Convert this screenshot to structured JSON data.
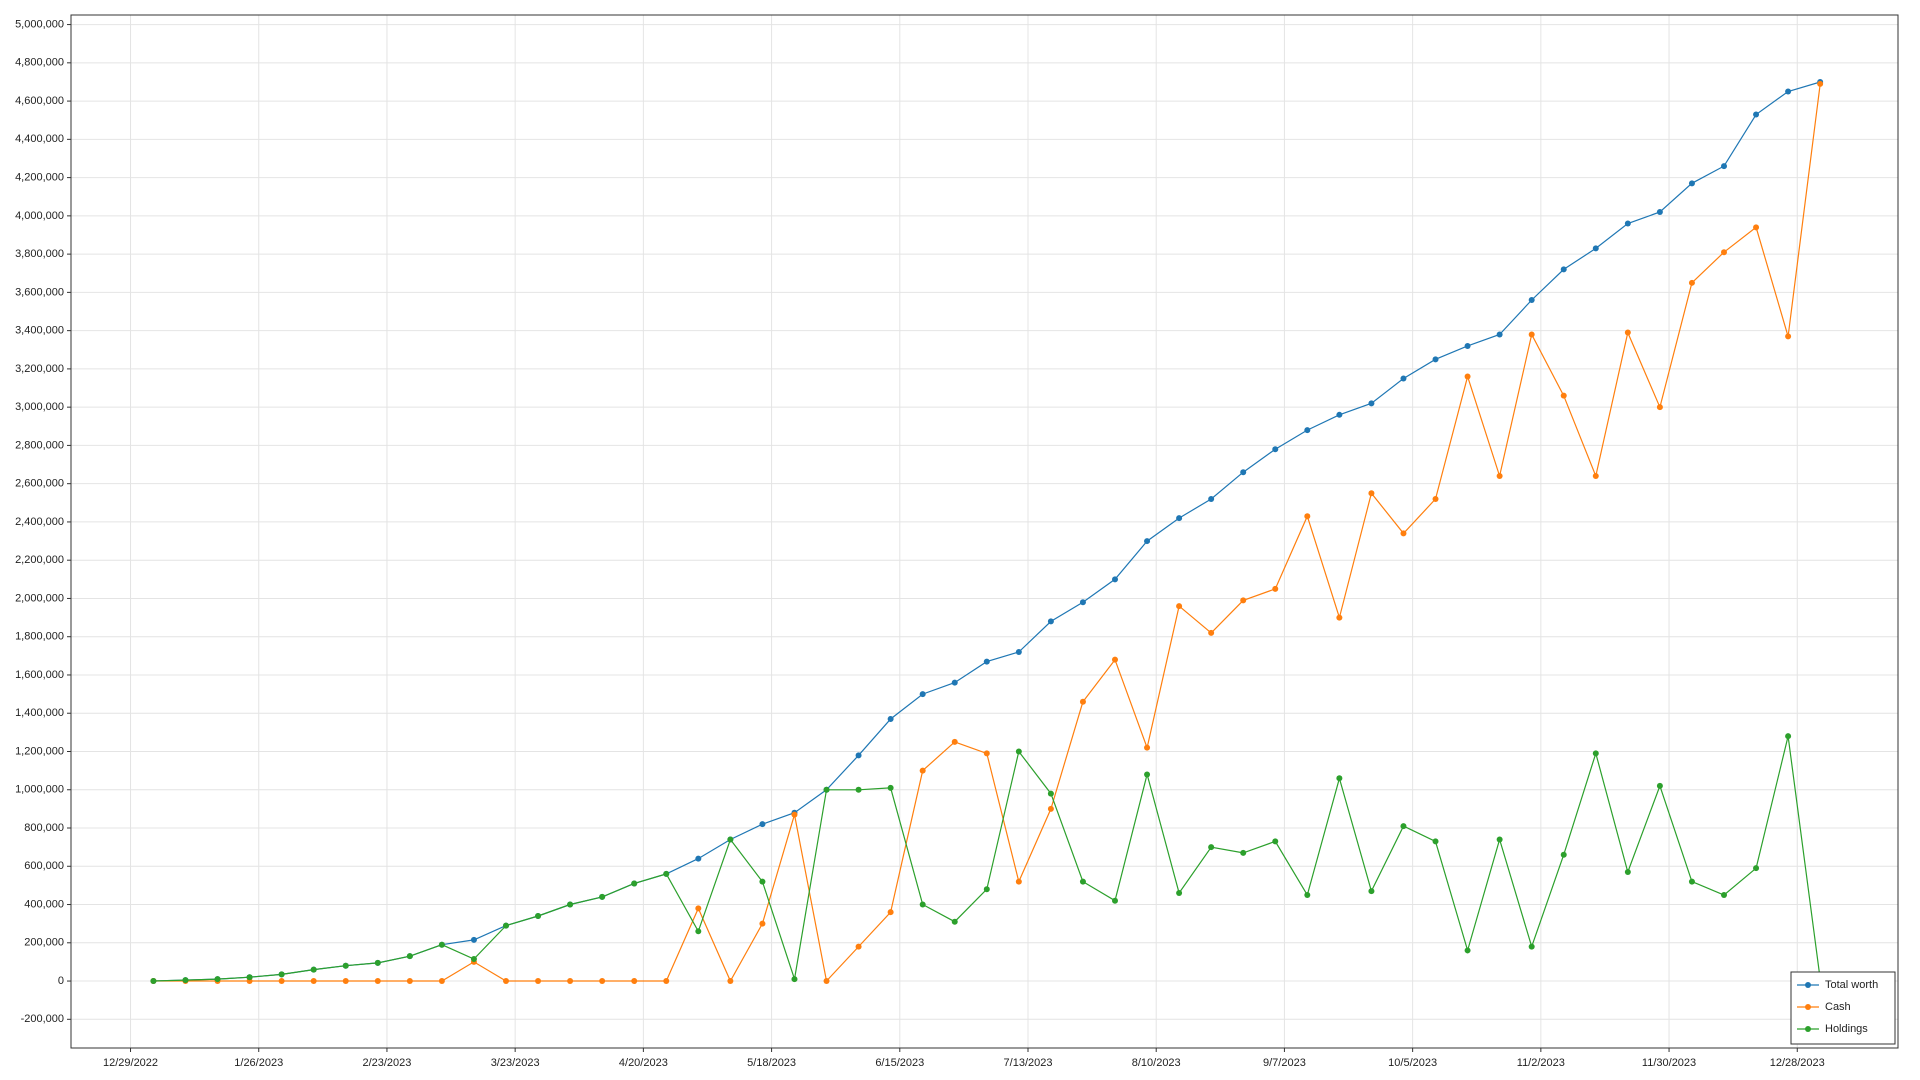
{
  "chart_data": {
    "type": "line",
    "x": [
      "2023-01-03",
      "2023-01-10",
      "2023-01-17",
      "2023-01-24",
      "2023-01-31",
      "2023-02-07",
      "2023-02-14",
      "2023-02-21",
      "2023-02-28",
      "2023-03-07",
      "2023-03-14",
      "2023-03-21",
      "2023-03-28",
      "2023-04-04",
      "2023-04-11",
      "2023-04-18",
      "2023-04-25",
      "2023-05-02",
      "2023-05-09",
      "2023-05-16",
      "2023-05-23",
      "2023-05-30",
      "2023-06-06",
      "2023-06-13",
      "2023-06-20",
      "2023-06-27",
      "2023-07-04",
      "2023-07-11",
      "2023-07-18",
      "2023-07-25",
      "2023-08-01",
      "2023-08-08",
      "2023-08-15",
      "2023-08-22",
      "2023-08-29",
      "2023-09-05",
      "2023-09-12",
      "2023-09-19",
      "2023-09-26",
      "2023-10-03",
      "2023-10-10",
      "2023-10-17",
      "2023-10-24",
      "2023-10-31",
      "2023-11-07",
      "2023-11-14",
      "2023-11-21",
      "2023-11-28",
      "2023-12-05",
      "2023-12-12",
      "2023-12-19",
      "2023-12-26",
      "2024-01-02"
    ],
    "series": [
      {
        "name": "Total worth",
        "color": "#1f77b4",
        "values": [
          0,
          5000,
          10000,
          20000,
          35000,
          60000,
          80000,
          95000,
          130000,
          190000,
          215000,
          290000,
          340000,
          400000,
          440000,
          510000,
          560000,
          640000,
          740000,
          820000,
          880000,
          1000000,
          1180000,
          1370000,
          1500000,
          1560000,
          1670000,
          1720000,
          1880000,
          1980000,
          2100000,
          2300000,
          2420000,
          2520000,
          2660000,
          2780000,
          2880000,
          2960000,
          3020000,
          3150000,
          3250000,
          3320000,
          3380000,
          3560000,
          3720000,
          3830000,
          3960000,
          4020000,
          4170000,
          4260000,
          4530000,
          4650000,
          4700000
        ]
      },
      {
        "name": "Cash",
        "color": "#ff7f0e",
        "values": [
          0,
          0,
          0,
          0,
          0,
          0,
          0,
          0,
          0,
          0,
          100000,
          0,
          0,
          0,
          0,
          0,
          0,
          380000,
          0,
          300000,
          870000,
          0,
          180000,
          360000,
          1100000,
          1250000,
          1190000,
          520000,
          900000,
          1460000,
          1680000,
          1220000,
          1960000,
          1820000,
          1990000,
          2050000,
          2430000,
          1900000,
          2550000,
          2340000,
          2520000,
          3160000,
          2640000,
          3380000,
          3060000,
          2640000,
          3390000,
          3000000,
          3650000,
          3810000,
          3940000,
          3370000,
          4690000
        ]
      },
      {
        "name": "Holdings",
        "color": "#2ca02c",
        "values": [
          0,
          5000,
          10000,
          20000,
          35000,
          60000,
          80000,
          95000,
          130000,
          190000,
          115000,
          290000,
          340000,
          400000,
          440000,
          510000,
          560000,
          260000,
          740000,
          520000,
          10000,
          1000000,
          1000000,
          1010000,
          400000,
          310000,
          480000,
          1200000,
          980000,
          520000,
          420000,
          1080000,
          460000,
          700000,
          670000,
          730000,
          450000,
          1060000,
          470000,
          810000,
          730000,
          160000,
          740000,
          180000,
          660000,
          1190000,
          570000,
          1020000,
          520000,
          450000,
          590000,
          1280000,
          10000
        ]
      }
    ],
    "xlim": [
      "2022-12-16",
      "2024-01-19"
    ],
    "xticks": [
      {
        "value": "2022-12-29",
        "label": "12/29/2022"
      },
      {
        "value": "2023-01-26",
        "label": "1/26/2023"
      },
      {
        "value": "2023-02-23",
        "label": "2/23/2023"
      },
      {
        "value": "2023-03-23",
        "label": "3/23/2023"
      },
      {
        "value": "2023-04-20",
        "label": "4/20/2023"
      },
      {
        "value": "2023-05-18",
        "label": "5/18/2023"
      },
      {
        "value": "2023-06-15",
        "label": "6/15/2023"
      },
      {
        "value": "2023-07-13",
        "label": "7/13/2023"
      },
      {
        "value": "2023-08-10",
        "label": "8/10/2023"
      },
      {
        "value": "2023-09-07",
        "label": "9/7/2023"
      },
      {
        "value": "2023-10-05",
        "label": "10/5/2023"
      },
      {
        "value": "2023-11-02",
        "label": "11/2/2023"
      },
      {
        "value": "2023-11-30",
        "label": "11/30/2023"
      },
      {
        "value": "2023-12-28",
        "label": "12/28/2023"
      }
    ],
    "ylim": [
      -350000,
      5050000
    ],
    "yticks": [
      {
        "value": -200000,
        "label": "-200,000"
      },
      0,
      {
        "value": 200000,
        "label": "200,000"
      },
      {
        "value": 400000,
        "label": "400,000"
      },
      {
        "value": 600000,
        "label": "600,000"
      },
      {
        "value": 800000,
        "label": "800,000"
      },
      {
        "value": 1000000,
        "label": "1,000,000"
      },
      {
        "value": 1200000,
        "label": "1,200,000"
      },
      {
        "value": 1400000,
        "label": "1,400,000"
      },
      {
        "value": 1600000,
        "label": "1,600,000"
      },
      {
        "value": 1800000,
        "label": "1,800,000"
      },
      {
        "value": 2000000,
        "label": "2,000,000"
      },
      {
        "value": 2200000,
        "label": "2,200,000"
      },
      {
        "value": 2400000,
        "label": "2,400,000"
      },
      {
        "value": 2600000,
        "label": "2,600,000"
      },
      {
        "value": 2800000,
        "label": "2,800,000"
      },
      {
        "value": 3000000,
        "label": "3,000,000"
      },
      {
        "value": 3200000,
        "label": "3,200,000"
      },
      {
        "value": 3400000,
        "label": "3,400,000"
      },
      {
        "value": 3600000,
        "label": "3,600,000"
      },
      {
        "value": 3800000,
        "label": "3,800,000"
      },
      {
        "value": 4000000,
        "label": "4,000,000"
      },
      {
        "value": 4200000,
        "label": "4,200,000"
      },
      {
        "value": 4400000,
        "label": "4,400,000"
      },
      {
        "value": 4600000,
        "label": "4,600,000"
      },
      {
        "value": 4800000,
        "label": "4,800,000"
      },
      {
        "value": 5000000,
        "label": "5,000,000"
      }
    ],
    "grid": true,
    "legend": "lower right"
  }
}
